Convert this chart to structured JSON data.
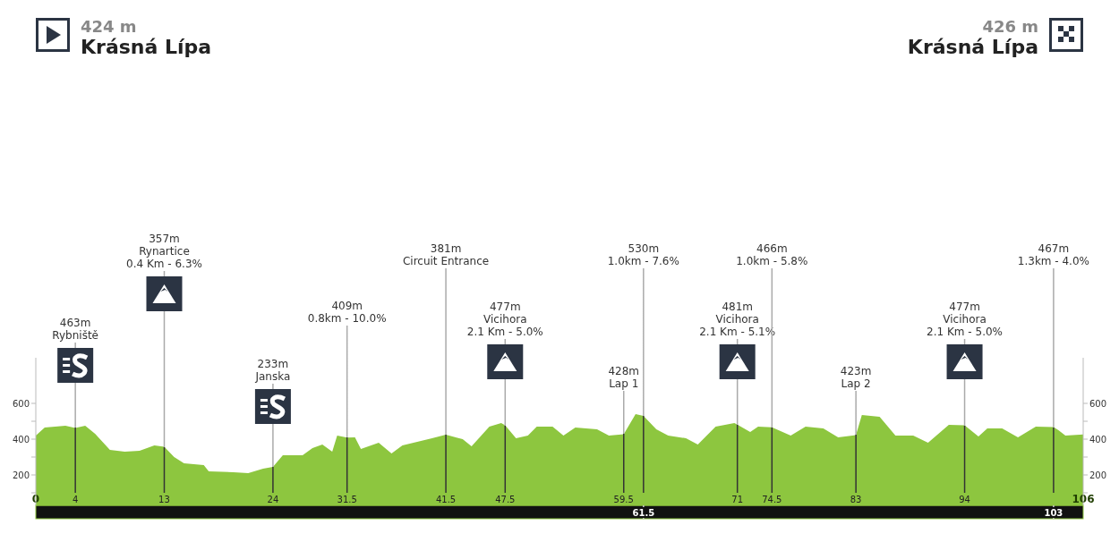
{
  "chart_data": {
    "type": "area",
    "color": "#8dc63f",
    "x": [
      0,
      0.9,
      3,
      4,
      5,
      6,
      7.5,
      9,
      10.5,
      12,
      13,
      14,
      15,
      17,
      17.5,
      20,
      21.5,
      23,
      24,
      25,
      27,
      28,
      29,
      30,
      30.5,
      31.5,
      32.3,
      32.9,
      34.7,
      36,
      37.1,
      40.1,
      41.5,
      43.2,
      44.1,
      45.9,
      47.1,
      47.5,
      48.6,
      49.8,
      50.7,
      52.3,
      53.4,
      54.6,
      56.8,
      58,
      59.5,
      60.7,
      61.5,
      62.8,
      64,
      65.8,
      67,
      68.8,
      70.7,
      71,
      72.3,
      73.1,
      74.5,
      76.4,
      77.9,
      79.7,
      81.2,
      83,
      83.6,
      85.4,
      87,
      88.8,
      90.3,
      92.4,
      94,
      95.4,
      96.3,
      97.8,
      99.4,
      101.2,
      103,
      103.5,
      104.2,
      106
    ],
    "values": [
      420,
      465,
      475,
      463,
      475,
      430,
      340,
      330,
      335,
      365,
      357,
      300,
      265,
      255,
      220,
      215,
      210,
      235,
      245,
      310,
      310,
      350,
      370,
      330,
      420,
      409,
      410,
      345,
      380,
      320,
      365,
      405,
      425,
      400,
      360,
      470,
      490,
      477,
      405,
      420,
      470,
      470,
      420,
      465,
      455,
      420,
      428,
      540,
      530,
      455,
      420,
      405,
      370,
      470,
      490,
      481,
      440,
      470,
      466,
      420,
      470,
      460,
      410,
      423,
      535,
      525,
      420,
      420,
      380,
      480,
      477,
      415,
      460,
      460,
      410,
      470,
      467,
      450,
      420,
      426
    ],
    "xlim": [
      0,
      106
    ],
    "xticks": [
      0,
      4,
      13,
      24,
      31.5,
      41.5,
      47.5,
      59.5,
      71,
      74.5,
      83,
      94,
      106
    ],
    "x2lim": [
      0,
      106
    ],
    "x2ticks": [
      61.5,
      103
    ],
    "ylim": [
      30,
      855
    ],
    "yticks": [
      {
        "value": 100,
        "label": null
      },
      200,
      {
        "value": 300,
        "label": null
      },
      400,
      {
        "value": 500,
        "label": null
      },
      600
    ],
    "y2lim": [
      30,
      855
    ],
    "y2ticks": [
      {
        "value": 100,
        "label": null
      },
      200,
      {
        "value": 300,
        "label": null
      },
      400,
      {
        "value": 500,
        "label": null
      },
      600
    ],
    "grid": false,
    "ref_lines": [
      {
        "axis": "x",
        "value": 4,
        "label": "463m\nRybniště"
      },
      {
        "axis": "x",
        "value": 13,
        "label": "357m\nRynartice\n0.4 Km - 6.3%"
      },
      {
        "axis": "x",
        "value": 24,
        "label": "233m\nJanska"
      },
      {
        "axis": "x",
        "value": 31.5,
        "label": "409m\n0.8km - 10.0%"
      },
      {
        "axis": "x",
        "value": 41.5,
        "label": "381m\nCircuit Entrance"
      },
      {
        "axis": "x",
        "value": 47.5,
        "label": "477m\nVicihora\n2.1 Km - 5.0%"
      },
      {
        "axis": "x",
        "value": 59.5,
        "label": "428m\nLap 1"
      },
      {
        "axis": "x",
        "value": 61.5,
        "label": "530m\n1.0km - 7.6%"
      },
      {
        "axis": "x",
        "value": 71,
        "label": "481m\nVicihora\n2.1 Km - 5.1%"
      },
      {
        "axis": "x",
        "value": 74.5,
        "label": "466m\n1.0km - 5.8%"
      },
      {
        "axis": "x",
        "value": 83,
        "label": "423m\nLap 2"
      },
      {
        "axis": "x",
        "value": 94,
        "label": "477m\nVicihora\n2.1 Km - 5.0%"
      },
      {
        "axis": "x",
        "value": 103,
        "label": "467m\n1.3km - 4.0%"
      }
    ],
    "annotations": [
      "424 m\nKrásná Lípa",
      "426 m\nKrásná Lípa"
    ]
  }
}
